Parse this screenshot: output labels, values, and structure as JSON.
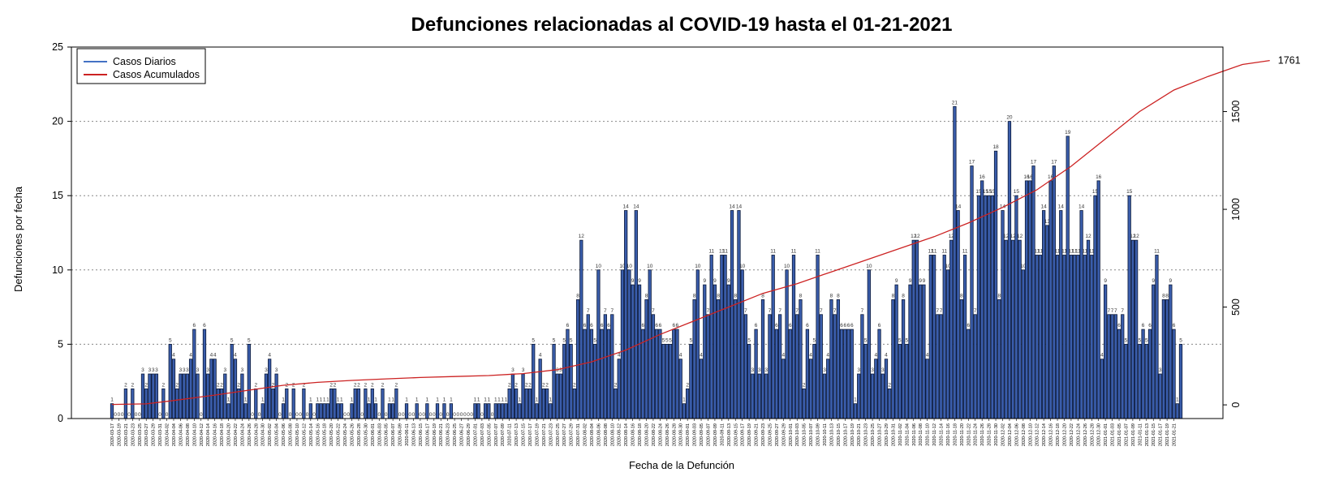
{
  "chart_data": {
    "type": "bar",
    "title": "Defunciones relacionadas al COVID-19 hasta el 01-21-2021",
    "xlabel": "Fecha de la Defunción",
    "ylabel": "Defunciones por fecha",
    "ylim": [
      0,
      25
    ],
    "y_ticks": [
      0,
      5,
      10,
      15,
      20,
      25
    ],
    "y2lim": [
      -70,
      1830
    ],
    "y2_ticks": [
      0,
      500,
      1000,
      1500
    ],
    "grid": "dotted horizontal",
    "legend_position": "top-left",
    "final_cumulative_label": "1761",
    "series": [
      {
        "name": "Casos Diarios",
        "kind": "bar",
        "color": "#4472c4",
        "fill": "#3a5dab"
      },
      {
        "name": "Casos Acumulados",
        "kind": "line",
        "color": "#cc2222"
      }
    ],
    "x_start": "2020-03-17",
    "x_end": "2021-01-21",
    "x_tick_labels": [
      "2020-03-17",
      "2020-03-19",
      "2020-03-21",
      "2020-03-23",
      "2020-03-25",
      "2020-03-27",
      "2020-03-29",
      "2020-03-31",
      "2020-04-02",
      "2020-04-04",
      "2020-04-06",
      "2020-04-08",
      "2020-04-10",
      "2020-04-12",
      "2020-04-14",
      "2020-04-16",
      "2020-04-18",
      "2020-04-20",
      "2020-04-22",
      "2020-04-24",
      "2020-04-26",
      "2020-04-28",
      "2020-04-30",
      "2020-05-02",
      "2020-05-04",
      "2020-05-06",
      "2020-05-08",
      "2020-05-10",
      "2020-05-12",
      "2020-05-14",
      "2020-05-16",
      "2020-05-18",
      "2020-05-20",
      "2020-05-22",
      "2020-05-24",
      "2020-05-26",
      "2020-05-28",
      "2020-05-30",
      "2020-06-01",
      "2020-06-03",
      "2020-06-05",
      "2020-06-07",
      "2020-06-09",
      "2020-06-11",
      "2020-06-13",
      "2020-06-15",
      "2020-06-17",
      "2020-06-19",
      "2020-06-21",
      "2020-06-23",
      "2020-06-25",
      "2020-06-27",
      "2020-06-29",
      "2020-07-01",
      "2020-07-03",
      "2020-07-05",
      "2020-07-07",
      "2020-07-09",
      "2020-07-11",
      "2020-07-13",
      "2020-07-15",
      "2020-07-17",
      "2020-07-19",
      "2020-07-21",
      "2020-07-23",
      "2020-07-25",
      "2020-07-27",
      "2020-07-29",
      "2020-07-31",
      "2020-08-02",
      "2020-08-04",
      "2020-08-06",
      "2020-08-08",
      "2020-08-10",
      "2020-08-12",
      "2020-08-14",
      "2020-08-16",
      "2020-08-18",
      "2020-08-20",
      "2020-08-22",
      "2020-08-24",
      "2020-08-26",
      "2020-08-28",
      "2020-08-30",
      "2020-09-01",
      "2020-09-03",
      "2020-09-05",
      "2020-09-07",
      "2020-09-09",
      "2020-09-11",
      "2020-09-13",
      "2020-09-15",
      "2020-09-17",
      "2020-09-19",
      "2020-09-21",
      "2020-09-23",
      "2020-09-25",
      "2020-09-27",
      "2020-09-29",
      "2020-10-01",
      "2020-10-03",
      "2020-10-05",
      "2020-10-07",
      "2020-10-09",
      "2020-10-11",
      "2020-10-13",
      "2020-10-15",
      "2020-10-17",
      "2020-10-19",
      "2020-10-21",
      "2020-10-23",
      "2020-10-25",
      "2020-10-27",
      "2020-10-29",
      "2020-10-31",
      "2020-11-02",
      "2020-11-04",
      "2020-11-06",
      "2020-11-08",
      "2020-11-10",
      "2020-11-12",
      "2020-11-14",
      "2020-11-16",
      "2020-11-18",
      "2020-11-20",
      "2020-11-22",
      "2020-11-24",
      "2020-11-26",
      "2020-11-28",
      "2020-11-30",
      "2020-12-02",
      "2020-12-04",
      "2020-12-06",
      "2020-12-08",
      "2020-12-10",
      "2020-12-12",
      "2020-12-14",
      "2020-12-16",
      "2020-12-18",
      "2020-12-20",
      "2020-12-22",
      "2020-12-24",
      "2020-12-26",
      "2020-12-28",
      "2020-12-30",
      "2021-01-01",
      "2021-01-03",
      "2021-01-05",
      "2021-01-07",
      "2021-01-09",
      "2021-01-11",
      "2021-01-13",
      "2021-01-15",
      "2021-01-17",
      "2021-01-19",
      "2021-01-21"
    ],
    "daily_values": [
      1,
      0,
      0,
      0,
      2,
      0,
      2,
      0,
      0,
      3,
      2,
      3,
      3,
      3,
      0,
      2,
      0,
      5,
      4,
      2,
      3,
      3,
      3,
      4,
      6,
      3,
      0,
      6,
      3,
      4,
      4,
      2,
      2,
      3,
      1,
      5,
      4,
      2,
      3,
      1,
      5,
      0,
      2,
      0,
      1,
      3,
      4,
      2,
      3,
      0,
      1,
      2,
      0,
      2,
      0,
      0,
      2,
      0,
      1,
      0,
      1,
      1,
      1,
      1,
      2,
      2,
      1,
      1,
      0,
      0,
      1,
      2,
      2,
      0,
      2,
      1,
      2,
      1,
      0,
      2,
      0,
      1,
      1,
      2,
      0,
      0,
      1,
      0,
      0,
      1,
      0,
      0,
      1,
      0,
      0,
      1,
      0,
      1,
      0,
      1,
      0,
      0,
      0,
      0,
      0,
      0,
      1,
      1,
      0,
      1,
      1,
      0,
      1,
      1,
      1,
      1,
      2,
      3,
      2,
      1,
      3,
      2,
      2,
      5,
      1,
      4,
      2,
      2,
      1,
      5,
      3,
      3,
      5,
      6,
      5,
      2,
      8,
      12,
      6,
      7,
      6,
      5,
      10,
      6,
      7,
      6,
      7,
      2,
      4,
      10,
      14,
      10,
      9,
      14,
      9,
      6,
      8,
      10,
      7,
      6,
      6,
      5,
      5,
      5,
      6,
      6,
      4,
      1,
      2,
      5,
      8,
      10,
      4,
      9,
      7,
      11,
      9,
      8,
      11,
      11,
      9,
      14,
      8,
      14,
      10,
      7,
      5,
      3,
      6,
      3,
      8,
      3,
      7,
      11,
      6,
      7,
      4,
      10,
      6,
      11,
      7,
      8,
      2,
      6,
      4,
      5,
      11,
      7,
      3,
      4,
      8,
      7,
      8,
      6,
      6,
      6,
      6,
      1,
      3,
      7,
      5,
      10,
      3,
      4,
      6,
      3,
      4,
      2,
      8,
      9,
      5,
      8,
      5,
      9,
      12,
      12,
      9,
      9,
      4,
      11,
      11,
      7,
      7,
      11,
      10,
      12,
      21,
      14,
      8,
      11,
      6,
      17,
      7,
      15,
      16,
      15,
      15,
      15,
      18,
      8,
      14,
      12,
      20,
      12,
      15,
      12,
      10,
      16,
      16,
      17,
      11,
      11,
      14,
      13,
      16,
      17,
      11,
      14,
      11,
      19,
      11,
      11,
      11,
      14,
      11,
      12,
      11,
      15,
      16,
      4,
      9,
      7,
      7,
      7,
      6,
      7,
      5,
      15,
      12,
      12,
      5,
      6,
      5,
      6,
      9,
      11,
      3,
      8,
      8,
      9,
      6,
      1,
      5
    ],
    "cumulative_points": [
      [
        0,
        2
      ],
      [
        10,
        5
      ],
      [
        17,
        20
      ],
      [
        30,
        50
      ],
      [
        40,
        75
      ],
      [
        50,
        100
      ],
      [
        60,
        115
      ],
      [
        70,
        125
      ],
      [
        80,
        133
      ],
      [
        90,
        140
      ],
      [
        100,
        145
      ],
      [
        110,
        150
      ],
      [
        120,
        160
      ],
      [
        130,
        180
      ],
      [
        140,
        220
      ],
      [
        150,
        280
      ],
      [
        160,
        360
      ],
      [
        170,
        430
      ],
      [
        180,
        500
      ],
      [
        190,
        570
      ],
      [
        200,
        620
      ],
      [
        210,
        680
      ],
      [
        220,
        740
      ],
      [
        230,
        800
      ],
      [
        240,
        860
      ],
      [
        250,
        930
      ],
      [
        260,
        1010
      ],
      [
        270,
        1100
      ],
      [
        280,
        1220
      ],
      [
        290,
        1360
      ],
      [
        300,
        1500
      ],
      [
        310,
        1610
      ],
      [
        320,
        1680
      ],
      [
        330,
        1741
      ],
      [
        338,
        1761
      ]
    ],
    "bar_label_note": "value labels printed above bars"
  }
}
